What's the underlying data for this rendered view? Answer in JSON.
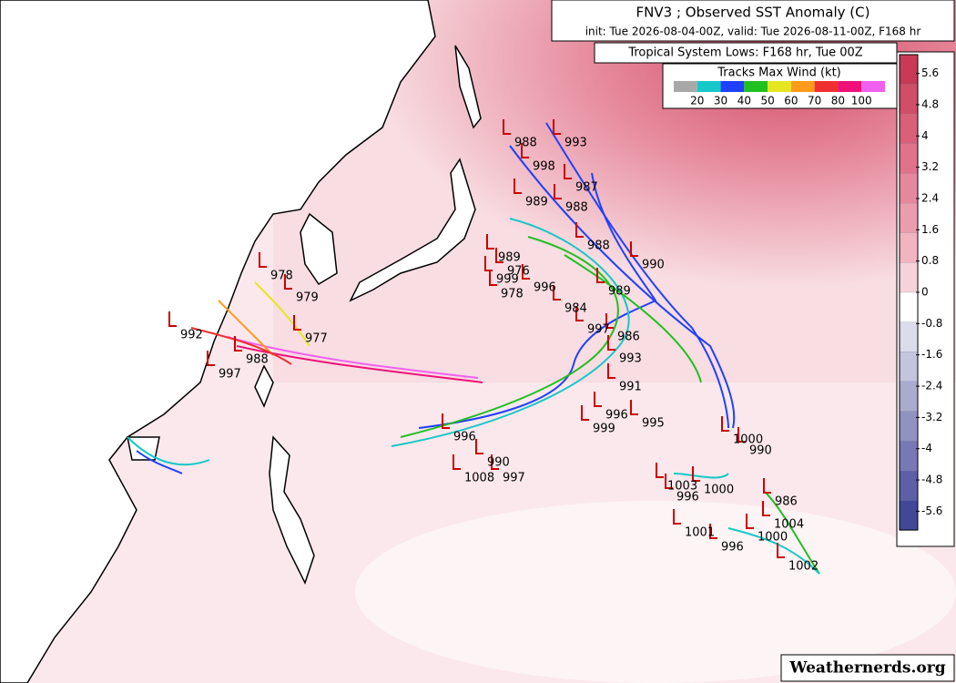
{
  "header": {
    "title": "FNV3 ; Observed SST Anomaly (C)",
    "subtitle": "init: Tue 2026-08-04-00Z, valid: Tue 2026-08-11-00Z, F168 hr",
    "tracks_title": "Tropical System Lows: F168 hr, Tue 00Z"
  },
  "wind_legend": {
    "title": "Tracks Max Wind (kt)",
    "ticks": [
      20,
      30,
      40,
      50,
      60,
      70,
      80,
      100
    ],
    "colors": [
      "#a8a8a8",
      "#17c8c8",
      "#2040ff",
      "#20c020",
      "#e6e620",
      "#ff9a1a",
      "#f03030",
      "#f0107a",
      "#f060f0"
    ]
  },
  "sst_colorbar": {
    "ticks": [
      5.6,
      4.8,
      4,
      3.2,
      2.4,
      1.6,
      0.8,
      0,
      -0.8,
      -1.6,
      -2.4,
      -3.2,
      -4,
      -4.8,
      -5.6
    ],
    "colors": [
      "#c83a55",
      "#d24d66",
      "#da6078",
      "#e0738a",
      "#e6889b",
      "#ec9dad",
      "#f2b4c0",
      "#f8d2da",
      "#ffffff",
      "#dcdcec",
      "#c4c4de",
      "#aaabcf",
      "#9092c2",
      "#7679b4",
      "#5c60a6",
      "#424898"
    ]
  },
  "pressure_labels": [
    "993",
    "988",
    "998",
    "987",
    "988",
    "989",
    "988",
    "990",
    "989",
    "976",
    "999",
    "978",
    "996",
    "984",
    "989",
    "986",
    "997",
    "993",
    "991",
    "996",
    "999",
    "995",
    "1000",
    "990",
    "996",
    "1008",
    "997",
    "990",
    "1003",
    "996",
    "1000",
    "986",
    "1004",
    "1000",
    "1001",
    "996",
    "1002",
    "978",
    "979",
    "977",
    "988",
    "997",
    "992"
  ],
  "watermark": "Weathernerds.org"
}
